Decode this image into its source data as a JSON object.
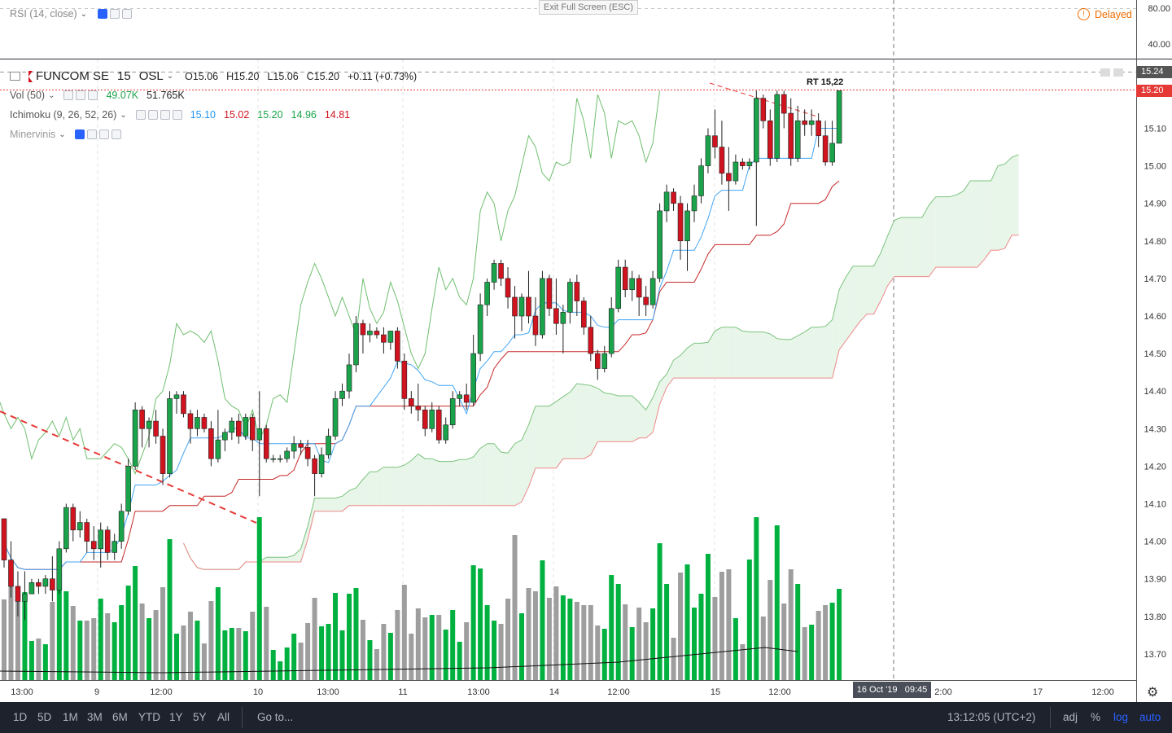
{
  "rsi_pane": {
    "label": "RSI (14, close)",
    "delayed": "Delayed",
    "levels": [
      "80.00",
      "40.00"
    ],
    "fullscreen_hint": "Exit Full Screen (ESC)"
  },
  "symbol": {
    "name": "FUNCOM SE",
    "interval": "15",
    "exchange": "OSL",
    "open": "O15.06",
    "high": "H15.20",
    "low": "L15.06",
    "close": "C15.20",
    "change": "+0.11 (+0.73%)"
  },
  "indicators": {
    "vol_label": "Vol (50)",
    "vol_value1": "49.07K",
    "vol_value2": "51.765K",
    "ichimoku_label": "Ichimoku (9, 26, 52, 26)",
    "ichimoku_values": [
      "15.10",
      "15.02",
      "15.20",
      "14.96",
      "14.81"
    ],
    "minervinis_label": "Minervinis"
  },
  "annotation": "RT 15,22",
  "price_axis": [
    "15.10",
    "15.00",
    "14.90",
    "14.80",
    "14.70",
    "14.60",
    "14.50",
    "14.40",
    "14.30",
    "14.20",
    "14.10",
    "14.00",
    "13.90",
    "13.80",
    "13.70"
  ],
  "price_tags": {
    "last": "15.24",
    "current": "15.20"
  },
  "time_axis": [
    "13:00",
    "9",
    "12:00",
    "10",
    "13:00",
    "11",
    "13:00",
    "14",
    "12:00",
    "15",
    "12:00",
    "2:00",
    "17",
    "12:00"
  ],
  "crosshair_time": "16 Oct '19   09:45",
  "bottom_bar": {
    "ranges": [
      "1D",
      "5D",
      "1M",
      "3M",
      "6M",
      "YTD",
      "1Y",
      "5Y",
      "All"
    ],
    "goto": "Go to...",
    "clock": "13:12:05 (UTC+2)",
    "adj": "adj",
    "percent": "%",
    "log": "log",
    "auto": "auto"
  },
  "colors": {
    "up": "#1aa34a",
    "down": "#d0131f",
    "ichimoku_conversion": "#2196f3",
    "ichimoku_base": "#e53935",
    "lagging": "#43a047",
    "cloud_up": "#e8f5e9",
    "cloud_down": "#fde2e2",
    "volume_up": "#00b140",
    "volume_down": "#9e9e9e",
    "delayed": "#ef6c00",
    "bottom_bar_bg": "#1e222d",
    "accent_blue": "#2962ff"
  },
  "chart_data": {
    "type": "candlestick",
    "title": "FUNCOM SE, 15, OSL",
    "y_range": [
      13.65,
      15.26
    ],
    "candles": [
      [
        14.06,
        14.06,
        13.93,
        13.95
      ],
      [
        13.95,
        14.0,
        13.85,
        13.88
      ],
      [
        13.88,
        13.92,
        13.8,
        13.84
      ],
      [
        13.84,
        13.92,
        13.79,
        13.86
      ],
      [
        13.86,
        13.9,
        13.86,
        13.89
      ],
      [
        13.89,
        13.9,
        13.86,
        13.88
      ],
      [
        13.88,
        13.91,
        13.86,
        13.9
      ],
      [
        13.9,
        13.96,
        13.84,
        13.87
      ],
      [
        13.87,
        14.0,
        13.86,
        13.98
      ],
      [
        13.98,
        14.1,
        13.97,
        14.09
      ],
      [
        14.09,
        14.1,
        14.0,
        14.03
      ],
      [
        14.03,
        14.08,
        14.01,
        14.05
      ],
      [
        14.05,
        14.06,
        13.97,
        14.0
      ],
      [
        14.0,
        14.04,
        13.95,
        13.98
      ],
      [
        13.98,
        14.05,
        13.93,
        14.03
      ],
      [
        14.03,
        14.04,
        13.95,
        13.97
      ],
      [
        13.97,
        14.02,
        13.95,
        14.0
      ],
      [
        14.0,
        14.1,
        13.98,
        14.08
      ],
      [
        14.08,
        14.22,
        14.07,
        14.2
      ],
      [
        14.2,
        14.37,
        14.19,
        14.35
      ],
      [
        14.35,
        14.36,
        14.25,
        14.3
      ],
      [
        14.3,
        14.33,
        14.25,
        14.32
      ],
      [
        14.32,
        14.35,
        14.26,
        14.28
      ],
      [
        14.28,
        14.3,
        14.15,
        14.18
      ],
      [
        14.18,
        14.4,
        14.17,
        14.38
      ],
      [
        14.38,
        14.4,
        14.34,
        14.39
      ],
      [
        14.39,
        14.4,
        14.33,
        14.34
      ],
      [
        14.34,
        14.35,
        14.26,
        14.3
      ],
      [
        14.3,
        14.35,
        14.28,
        14.33
      ],
      [
        14.33,
        14.34,
        14.29,
        14.3
      ],
      [
        14.3,
        14.32,
        14.2,
        14.22
      ],
      [
        14.22,
        14.35,
        14.21,
        14.27
      ],
      [
        14.27,
        14.3,
        14.24,
        14.29
      ],
      [
        14.29,
        14.33,
        14.27,
        14.32
      ],
      [
        14.32,
        14.34,
        14.26,
        14.28
      ],
      [
        14.28,
        14.34,
        14.27,
        14.33
      ],
      [
        14.33,
        14.34,
        14.24,
        14.27
      ],
      [
        14.27,
        14.4,
        14.12,
        14.3
      ],
      [
        14.3,
        14.31,
        14.21,
        14.22
      ],
      [
        14.22,
        14.23,
        14.21,
        14.22
      ],
      [
        14.22,
        14.23,
        14.21,
        14.22
      ],
      [
        14.22,
        14.25,
        14.21,
        14.24
      ],
      [
        14.24,
        14.28,
        14.22,
        14.26
      ],
      [
        14.26,
        14.27,
        14.23,
        14.25
      ],
      [
        14.25,
        14.27,
        14.2,
        14.22
      ],
      [
        14.22,
        14.23,
        14.12,
        14.18
      ],
      [
        14.18,
        14.25,
        14.17,
        14.23
      ],
      [
        14.23,
        14.3,
        14.22,
        14.28
      ],
      [
        14.28,
        14.4,
        14.27,
        14.38
      ],
      [
        14.38,
        14.42,
        14.36,
        14.4
      ],
      [
        14.4,
        14.5,
        14.38,
        14.47
      ],
      [
        14.47,
        14.6,
        14.45,
        14.58
      ],
      [
        14.58,
        14.59,
        14.5,
        14.55
      ],
      [
        14.55,
        14.58,
        14.53,
        14.56
      ],
      [
        14.56,
        14.57,
        14.54,
        14.55
      ],
      [
        14.55,
        14.57,
        14.5,
        14.53
      ],
      [
        14.53,
        14.56,
        14.51,
        14.56
      ],
      [
        14.56,
        14.57,
        14.46,
        14.48
      ],
      [
        14.48,
        14.5,
        14.35,
        14.38
      ],
      [
        14.38,
        14.4,
        14.34,
        14.36
      ],
      [
        14.36,
        14.42,
        14.32,
        14.35
      ],
      [
        14.35,
        14.36,
        14.28,
        14.3
      ],
      [
        14.3,
        14.37,
        14.29,
        14.35
      ],
      [
        14.35,
        14.36,
        14.26,
        14.27
      ],
      [
        14.27,
        14.33,
        14.26,
        14.31
      ],
      [
        14.31,
        14.4,
        14.3,
        14.38
      ],
      [
        14.38,
        14.4,
        14.36,
        14.39
      ],
      [
        14.39,
        14.42,
        14.35,
        14.37
      ],
      [
        14.37,
        14.55,
        14.36,
        14.5
      ],
      [
        14.5,
        14.66,
        14.48,
        14.63
      ],
      [
        14.63,
        14.7,
        14.6,
        14.69
      ],
      [
        14.69,
        14.75,
        14.67,
        14.74
      ],
      [
        14.74,
        14.75,
        14.68,
        14.7
      ],
      [
        14.7,
        14.73,
        14.62,
        14.65
      ],
      [
        14.65,
        14.68,
        14.54,
        14.6
      ],
      [
        14.6,
        14.66,
        14.56,
        14.65
      ],
      [
        14.65,
        14.72,
        14.58,
        14.6
      ],
      [
        14.6,
        14.65,
        14.52,
        14.55
      ],
      [
        14.55,
        14.72,
        14.54,
        14.7
      ],
      [
        14.7,
        14.71,
        14.6,
        14.62
      ],
      [
        14.62,
        14.7,
        14.55,
        14.58
      ],
      [
        14.58,
        14.63,
        14.5,
        14.61
      ],
      [
        14.61,
        14.7,
        14.58,
        14.69
      ],
      [
        14.69,
        14.71,
        14.6,
        14.64
      ],
      [
        14.64,
        14.65,
        14.55,
        14.57
      ],
      [
        14.57,
        14.6,
        14.48,
        14.5
      ],
      [
        14.5,
        14.51,
        14.43,
        14.46
      ],
      [
        14.46,
        14.52,
        14.45,
        14.5
      ],
      [
        14.5,
        14.65,
        14.49,
        14.62
      ],
      [
        14.62,
        14.75,
        14.61,
        14.73
      ],
      [
        14.73,
        14.75,
        14.65,
        14.67
      ],
      [
        14.67,
        14.72,
        14.64,
        14.7
      ],
      [
        14.7,
        14.71,
        14.6,
        14.65
      ],
      [
        14.65,
        14.68,
        14.6,
        14.63
      ],
      [
        14.63,
        14.72,
        14.62,
        14.7
      ],
      [
        14.7,
        14.9,
        14.69,
        14.88
      ],
      [
        14.88,
        14.95,
        14.85,
        14.93
      ],
      [
        14.93,
        14.94,
        14.88,
        14.9
      ],
      [
        14.9,
        14.92,
        14.75,
        14.8
      ],
      [
        14.8,
        14.9,
        14.72,
        14.88
      ],
      [
        14.88,
        14.95,
        14.85,
        14.92
      ],
      [
        14.92,
        15.02,
        14.9,
        15.0
      ],
      [
        15.0,
        15.1,
        14.98,
        15.08
      ],
      [
        15.08,
        15.15,
        15.02,
        15.05
      ],
      [
        15.05,
        15.12,
        14.95,
        14.98
      ],
      [
        14.98,
        15.05,
        14.88,
        14.96
      ],
      [
        14.96,
        15.03,
        14.95,
        15.01
      ],
      [
        15.01,
        15.02,
        14.99,
        15.0
      ],
      [
        15.0,
        15.02,
        14.99,
        15.01
      ],
      [
        15.01,
        15.2,
        14.84,
        15.18
      ],
      [
        15.18,
        15.19,
        15.1,
        15.12
      ],
      [
        15.12,
        15.15,
        15.0,
        15.02
      ],
      [
        15.02,
        15.2,
        15.01,
        15.19
      ],
      [
        15.19,
        15.2,
        15.1,
        15.14
      ],
      [
        15.14,
        15.18,
        15.0,
        15.02
      ],
      [
        15.02,
        15.16,
        15.01,
        15.12
      ],
      [
        15.12,
        15.15,
        15.08,
        15.11
      ],
      [
        15.11,
        15.15,
        15.08,
        15.12
      ],
      [
        15.12,
        15.14,
        15.05,
        15.08
      ],
      [
        15.08,
        15.12,
        15.0,
        15.01
      ],
      [
        15.01,
        15.12,
        15.0,
        15.06
      ],
      [
        15.06,
        15.2,
        15.06,
        15.2
      ]
    ]
  }
}
